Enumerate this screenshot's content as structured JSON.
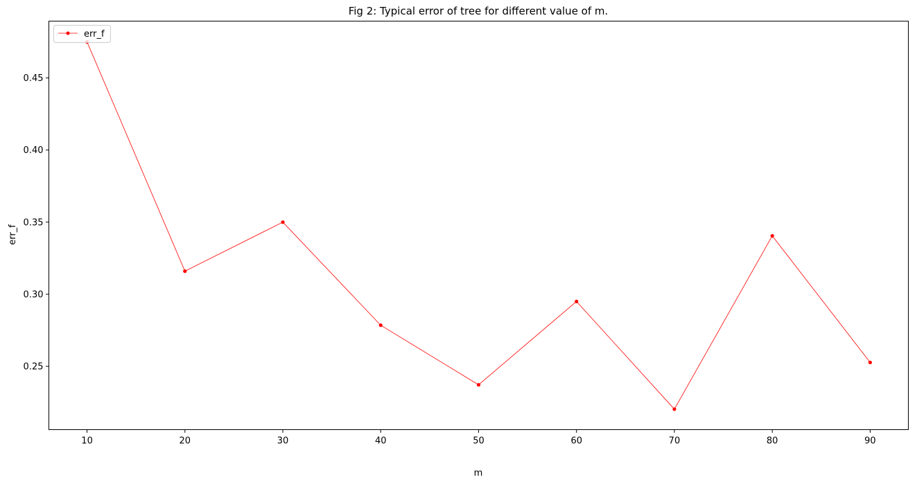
{
  "chart_data": {
    "type": "line",
    "title": "Fig 2: Typical error of tree for different value of m.",
    "xlabel": "m",
    "ylabel": "err_f",
    "x": [
      10,
      20,
      30,
      40,
      50,
      60,
      70,
      80,
      90
    ],
    "series": [
      {
        "name": "err_f",
        "color": "#ff0000",
        "marker": "dot",
        "values": [
          0.475,
          0.316,
          0.35,
          0.2785,
          0.2372,
          0.295,
          0.2203,
          0.3405,
          0.2527
        ]
      }
    ],
    "xlim": [
      6.1,
      93.9
    ],
    "ylim": [
      0.2061,
      0.4894
    ],
    "xticks": [
      10,
      20,
      30,
      40,
      50,
      60,
      70,
      80,
      90
    ],
    "xtick_labels": [
      "10",
      "20",
      "30",
      "40",
      "50",
      "60",
      "70",
      "80",
      "90"
    ],
    "yticks": [
      0.25,
      0.3,
      0.35,
      0.4,
      0.45
    ],
    "ytick_labels": [
      "0.25",
      "0.30",
      "0.35",
      "0.40",
      "0.45"
    ],
    "grid": false,
    "legend_position": "upper left"
  }
}
